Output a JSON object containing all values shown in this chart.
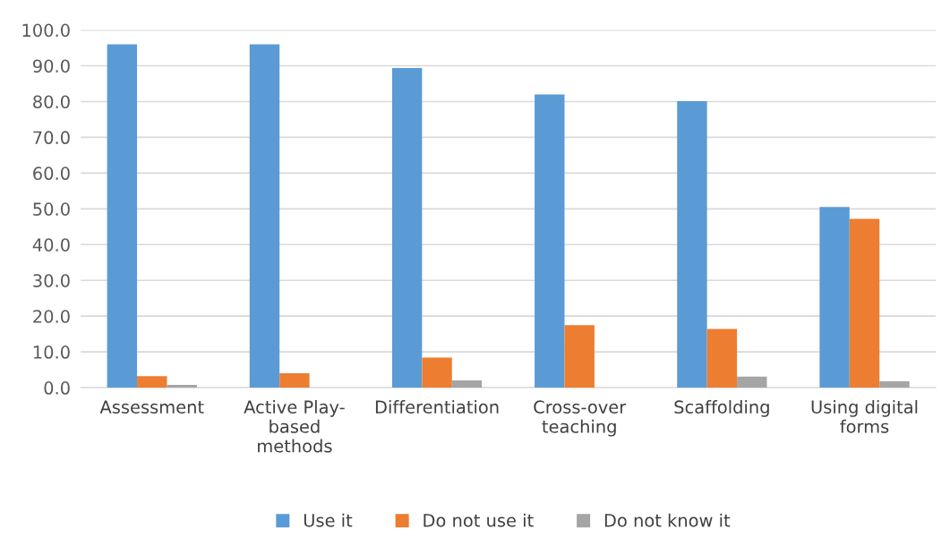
{
  "chart_data": {
    "type": "bar",
    "categories": [
      "Assessment",
      "Active Play-\nbased\nmethods",
      "Differentiation",
      "Cross-over\nteaching",
      "Scaffolding",
      "Using digital\nforms"
    ],
    "series": [
      {
        "name": "Use it",
        "color": "#5b9bd5",
        "values": [
          96.0,
          96.0,
          89.4,
          82.0,
          80.1,
          50.5
        ]
      },
      {
        "name": "Do not use it",
        "color": "#ed7d31",
        "values": [
          3.2,
          4.0,
          8.4,
          17.5,
          16.4,
          47.2
        ]
      },
      {
        "name": "Do not know it",
        "color": "#a5a5a5",
        "values": [
          0.8,
          0,
          2.0,
          0,
          3.1,
          1.8
        ]
      }
    ],
    "ylim": [
      0,
      100
    ],
    "yticks": [
      {
        "value": 0,
        "label": "0.0"
      },
      {
        "value": 10,
        "label": "10.0"
      },
      {
        "value": 20,
        "label": "20.0"
      },
      {
        "value": 30,
        "label": "30.0"
      },
      {
        "value": 40,
        "label": "40.0"
      },
      {
        "value": 50,
        "label": "50.0"
      },
      {
        "value": 60,
        "label": "60.0"
      },
      {
        "value": 70,
        "label": "70.0"
      },
      {
        "value": 80,
        "label": "80.0"
      },
      {
        "value": 90,
        "label": "90.0"
      },
      {
        "value": 100,
        "label": "100.0"
      }
    ],
    "grid": "y",
    "legend": "bottom"
  }
}
